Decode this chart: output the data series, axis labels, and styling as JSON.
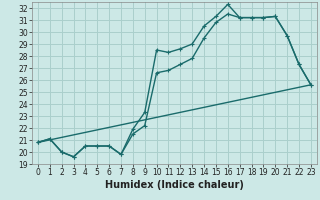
{
  "xlabel": "Humidex (Indice chaleur)",
  "bg_color": "#cce8e6",
  "grid_color": "#aacfcc",
  "line_color": "#1a6b6b",
  "xlim": [
    -0.5,
    23.5
  ],
  "ylim": [
    19,
    32.5
  ],
  "xticks": [
    0,
    1,
    2,
    3,
    4,
    5,
    6,
    7,
    8,
    9,
    10,
    11,
    12,
    13,
    14,
    15,
    16,
    17,
    18,
    19,
    20,
    21,
    22,
    23
  ],
  "yticks": [
    19,
    20,
    21,
    22,
    23,
    24,
    25,
    26,
    27,
    28,
    29,
    30,
    31,
    32
  ],
  "line1_x": [
    0,
    1,
    2,
    3,
    4,
    5,
    6,
    7,
    8,
    9,
    10,
    11,
    12,
    13,
    14,
    15,
    16,
    17,
    18,
    19,
    20,
    21,
    22,
    23
  ],
  "line1_y": [
    20.8,
    21.1,
    20.0,
    19.6,
    20.5,
    20.5,
    20.5,
    19.8,
    21.9,
    23.3,
    28.5,
    28.3,
    28.6,
    29.0,
    30.5,
    31.3,
    32.3,
    31.2,
    31.2,
    31.2,
    31.3,
    29.7,
    27.3,
    25.6
  ],
  "line2_x": [
    0,
    1,
    2,
    3,
    4,
    5,
    6,
    7,
    8,
    9,
    10,
    11,
    12,
    13,
    14,
    15,
    16,
    17,
    18,
    19,
    20,
    21,
    22,
    23
  ],
  "line2_y": [
    20.8,
    21.1,
    20.0,
    19.6,
    20.5,
    20.5,
    20.5,
    19.8,
    21.5,
    22.2,
    26.6,
    26.8,
    27.3,
    27.8,
    29.5,
    30.8,
    31.5,
    31.2,
    31.2,
    31.2,
    31.3,
    29.7,
    27.3,
    25.6
  ],
  "line3_x": [
    0,
    23
  ],
  "line3_y": [
    20.8,
    25.6
  ],
  "marker_size": 2.5,
  "linewidth": 1.0,
  "tick_fontsize": 5.5,
  "label_fontsize": 7
}
